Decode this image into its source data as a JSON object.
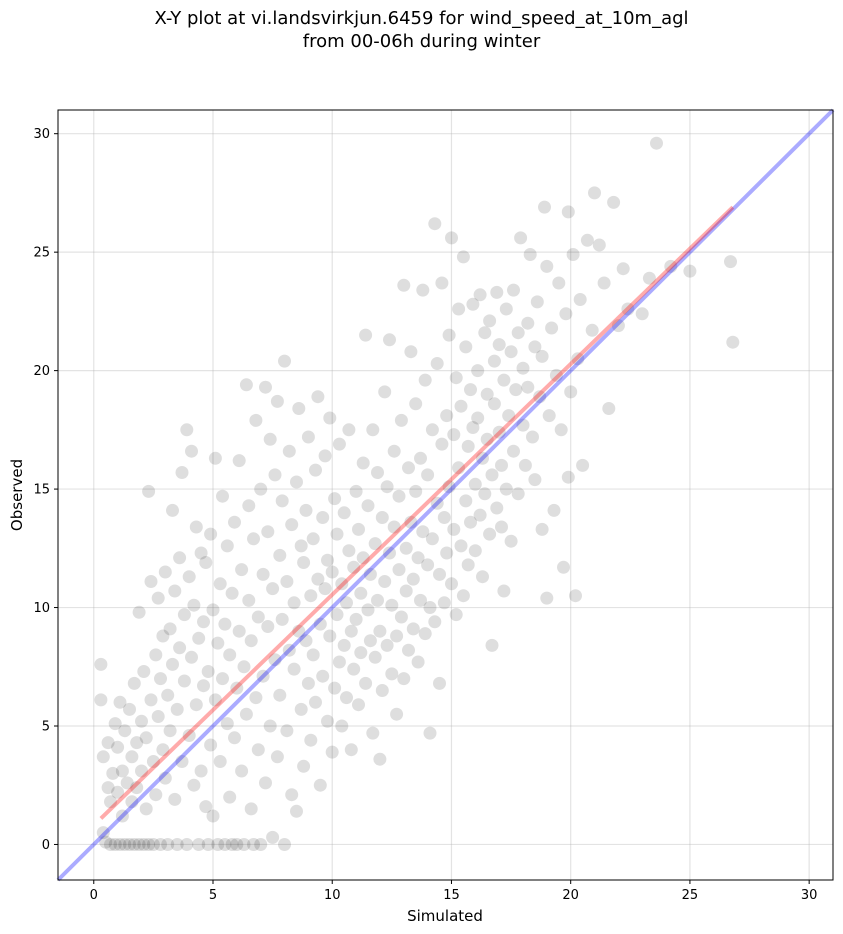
{
  "title_line1": "X-Y plot at vi.landsvirkjun.6459 for wind_speed_at_10m_agl",
  "title_line2": "from 00-06h during winter",
  "chart_data": {
    "type": "scatter",
    "xlabel": "Simulated",
    "ylabel": "Observed",
    "xlim": [
      -1.5,
      31
    ],
    "ylim": [
      -1.5,
      31
    ],
    "xticks": [
      0,
      5,
      10,
      15,
      20,
      25,
      30
    ],
    "yticks": [
      0,
      5,
      10,
      15,
      20,
      25,
      30
    ],
    "grid": true,
    "colors": {
      "points": "#000000",
      "fit_line": "#ff0000",
      "identity_line": "#0000ff"
    },
    "fit_line": {
      "x": [
        0.3,
        26.8
      ],
      "y": [
        1.1,
        26.9
      ]
    },
    "identity_line": {
      "x": [
        -1.5,
        31
      ],
      "y": [
        -1.5,
        31
      ]
    },
    "points": [
      [
        0.3,
        7.6
      ],
      [
        0.3,
        6.1
      ],
      [
        0.4,
        3.7
      ],
      [
        0.4,
        0.5
      ],
      [
        0.5,
        0.1
      ],
      [
        0.6,
        2.4
      ],
      [
        0.6,
        4.3
      ],
      [
        0.7,
        1.8
      ],
      [
        0.7,
        0.0
      ],
      [
        0.8,
        3.0
      ],
      [
        0.9,
        5.1
      ],
      [
        0.9,
        0.0
      ],
      [
        1.0,
        2.2
      ],
      [
        1.0,
        4.1
      ],
      [
        1.1,
        0.0
      ],
      [
        1.1,
        6.0
      ],
      [
        1.2,
        3.1
      ],
      [
        1.2,
        1.2
      ],
      [
        1.3,
        0.0
      ],
      [
        1.3,
        4.8
      ],
      [
        1.4,
        2.6
      ],
      [
        1.5,
        0.0
      ],
      [
        1.5,
        5.7
      ],
      [
        1.6,
        3.7
      ],
      [
        1.6,
        1.8
      ],
      [
        1.7,
        0.0
      ],
      [
        1.7,
        6.8
      ],
      [
        1.8,
        4.3
      ],
      [
        1.8,
        2.4
      ],
      [
        1.9,
        0.0
      ],
      [
        1.9,
        9.8
      ],
      [
        2.0,
        5.2
      ],
      [
        2.0,
        3.1
      ],
      [
        2.1,
        0.0
      ],
      [
        2.1,
        7.3
      ],
      [
        2.2,
        1.5
      ],
      [
        2.2,
        4.5
      ],
      [
        2.3,
        0.0
      ],
      [
        2.3,
        14.9
      ],
      [
        2.4,
        11.1
      ],
      [
        2.4,
        6.1
      ],
      [
        2.5,
        0.0
      ],
      [
        2.5,
        3.5
      ],
      [
        2.6,
        8.0
      ],
      [
        2.6,
        2.1
      ],
      [
        2.7,
        10.4
      ],
      [
        2.7,
        5.4
      ],
      [
        2.8,
        0.0
      ],
      [
        2.8,
        7.0
      ],
      [
        2.9,
        4.0
      ],
      [
        2.9,
        8.8
      ],
      [
        3.0,
        11.5
      ],
      [
        3.0,
        2.8
      ],
      [
        3.1,
        6.3
      ],
      [
        3.1,
        0.0
      ],
      [
        3.2,
        9.1
      ],
      [
        3.2,
        4.8
      ],
      [
        3.3,
        14.1
      ],
      [
        3.3,
        7.6
      ],
      [
        3.4,
        1.9
      ],
      [
        3.4,
        10.7
      ],
      [
        3.5,
        5.7
      ],
      [
        3.5,
        0.0
      ],
      [
        3.6,
        8.3
      ],
      [
        3.6,
        12.1
      ],
      [
        3.7,
        3.5
      ],
      [
        3.7,
        15.7
      ],
      [
        3.8,
        6.9
      ],
      [
        3.8,
        9.7
      ],
      [
        3.9,
        17.5
      ],
      [
        3.9,
        0.0
      ],
      [
        4.0,
        11.3
      ],
      [
        4.0,
        4.6
      ],
      [
        4.1,
        16.6
      ],
      [
        4.1,
        7.9
      ],
      [
        4.2,
        2.5
      ],
      [
        4.2,
        10.1
      ],
      [
        4.3,
        13.4
      ],
      [
        4.3,
        5.9
      ],
      [
        4.4,
        0.0
      ],
      [
        4.4,
        8.7
      ],
      [
        4.5,
        12.3
      ],
      [
        4.5,
        3.1
      ],
      [
        4.6,
        6.7
      ],
      [
        4.6,
        9.4
      ],
      [
        4.7,
        1.6
      ],
      [
        4.7,
        11.9
      ],
      [
        4.8,
        0.0
      ],
      [
        4.8,
        7.3
      ],
      [
        4.9,
        13.1
      ],
      [
        4.9,
        4.2
      ],
      [
        5.0,
        9.9
      ],
      [
        5.0,
        1.2
      ],
      [
        5.1,
        6.1
      ],
      [
        5.1,
        16.3
      ],
      [
        5.2,
        8.5
      ],
      [
        5.2,
        0.0
      ],
      [
        5.3,
        11.0
      ],
      [
        5.3,
        3.5
      ],
      [
        5.4,
        14.7
      ],
      [
        5.4,
        7.0
      ],
      [
        5.5,
        0.0
      ],
      [
        5.5,
        9.3
      ],
      [
        5.6,
        5.1
      ],
      [
        5.6,
        12.6
      ],
      [
        5.7,
        2.0
      ],
      [
        5.7,
        8.0
      ],
      [
        5.8,
        0.0
      ],
      [
        5.8,
        10.6
      ],
      [
        5.9,
        4.5
      ],
      [
        5.9,
        13.6
      ],
      [
        6.0,
        6.6
      ],
      [
        6.0,
        0.0
      ],
      [
        6.1,
        9.0
      ],
      [
        6.1,
        16.2
      ],
      [
        6.2,
        3.1
      ],
      [
        6.2,
        11.6
      ],
      [
        6.3,
        7.5
      ],
      [
        6.3,
        0.0
      ],
      [
        6.4,
        19.4
      ],
      [
        6.4,
        5.5
      ],
      [
        6.5,
        10.3
      ],
      [
        6.5,
        14.3
      ],
      [
        6.6,
        1.5
      ],
      [
        6.6,
        8.6
      ],
      [
        6.7,
        0.0
      ],
      [
        6.7,
        12.9
      ],
      [
        6.8,
        6.2
      ],
      [
        6.8,
        17.9
      ],
      [
        6.9,
        9.6
      ],
      [
        6.9,
        4.0
      ],
      [
        7.0,
        0.0
      ],
      [
        7.0,
        15.0
      ],
      [
        7.1,
        11.4
      ],
      [
        7.1,
        7.1
      ],
      [
        7.2,
        19.3
      ],
      [
        7.2,
        2.6
      ],
      [
        7.3,
        9.2
      ],
      [
        7.3,
        13.2
      ],
      [
        7.4,
        5.0
      ],
      [
        7.4,
        17.1
      ],
      [
        7.5,
        0.3
      ],
      [
        7.5,
        10.8
      ],
      [
        7.6,
        7.8
      ],
      [
        7.6,
        15.6
      ],
      [
        7.7,
        3.7
      ],
      [
        7.7,
        18.7
      ],
      [
        7.8,
        12.2
      ],
      [
        7.8,
        6.3
      ],
      [
        7.9,
        9.5
      ],
      [
        7.9,
        14.5
      ],
      [
        8.0,
        0.0
      ],
      [
        8.0,
        20.4
      ],
      [
        8.1,
        11.1
      ],
      [
        8.1,
        4.8
      ],
      [
        8.2,
        8.2
      ],
      [
        8.2,
        16.6
      ],
      [
        8.3,
        13.5
      ],
      [
        8.3,
        2.1
      ],
      [
        8.4,
        7.4
      ],
      [
        8.4,
        10.2
      ],
      [
        8.5,
        1.4
      ],
      [
        8.5,
        15.3
      ],
      [
        8.6,
        9.0
      ],
      [
        8.6,
        18.4
      ],
      [
        8.7,
        5.7
      ],
      [
        8.7,
        12.6
      ],
      [
        8.8,
        11.9
      ],
      [
        8.8,
        3.3
      ],
      [
        8.9,
        8.6
      ],
      [
        8.9,
        14.1
      ],
      [
        9.0,
        6.8
      ],
      [
        9.0,
        17.2
      ],
      [
        9.1,
        10.5
      ],
      [
        9.1,
        4.4
      ],
      [
        9.2,
        12.9
      ],
      [
        9.2,
        8.0
      ],
      [
        9.3,
        15.8
      ],
      [
        9.3,
        6.0
      ],
      [
        9.4,
        11.2
      ],
      [
        9.4,
        18.9
      ],
      [
        9.5,
        9.3
      ],
      [
        9.5,
        2.5
      ],
      [
        9.6,
        13.8
      ],
      [
        9.6,
        7.1
      ],
      [
        9.7,
        10.8
      ],
      [
        9.7,
        16.4
      ],
      [
        9.8,
        5.2
      ],
      [
        9.8,
        12.0
      ],
      [
        9.9,
        8.8
      ],
      [
        9.9,
        18.0
      ],
      [
        10.0,
        11.5
      ],
      [
        10.0,
        3.9
      ],
      [
        10.1,
        14.6
      ],
      [
        10.1,
        6.6
      ],
      [
        10.2,
        9.7
      ],
      [
        10.2,
        13.1
      ],
      [
        10.3,
        7.7
      ],
      [
        10.3,
        16.9
      ],
      [
        10.4,
        11.0
      ],
      [
        10.4,
        5.0
      ],
      [
        10.5,
        8.4
      ],
      [
        10.5,
        14.0
      ],
      [
        10.6,
        10.2
      ],
      [
        10.6,
        6.2
      ],
      [
        10.7,
        12.4
      ],
      [
        10.7,
        17.5
      ],
      [
        10.8,
        9.0
      ],
      [
        10.8,
        4.0
      ],
      [
        10.9,
        11.7
      ],
      [
        10.9,
        7.4
      ],
      [
        11.0,
        14.9
      ],
      [
        11.0,
        9.5
      ],
      [
        11.1,
        13.3
      ],
      [
        11.1,
        5.9
      ],
      [
        11.2,
        10.6
      ],
      [
        11.2,
        8.1
      ],
      [
        11.3,
        16.1
      ],
      [
        11.3,
        12.1
      ],
      [
        11.4,
        6.8
      ],
      [
        11.4,
        21.5
      ],
      [
        11.5,
        9.9
      ],
      [
        11.5,
        14.3
      ],
      [
        11.6,
        8.6
      ],
      [
        11.6,
        11.4
      ],
      [
        11.7,
        4.7
      ],
      [
        11.7,
        17.5
      ],
      [
        11.8,
        12.7
      ],
      [
        11.8,
        7.9
      ],
      [
        11.9,
        15.7
      ],
      [
        11.9,
        10.3
      ],
      [
        12.0,
        9.0
      ],
      [
        12.0,
        3.6
      ],
      [
        12.1,
        13.8
      ],
      [
        12.1,
        6.5
      ],
      [
        12.2,
        11.1
      ],
      [
        12.2,
        19.1
      ],
      [
        12.3,
        8.4
      ],
      [
        12.3,
        15.1
      ],
      [
        12.4,
        12.3
      ],
      [
        12.4,
        21.3
      ],
      [
        12.5,
        7.2
      ],
      [
        12.5,
        10.1
      ],
      [
        12.6,
        16.6
      ],
      [
        12.6,
        13.4
      ],
      [
        12.7,
        8.8
      ],
      [
        12.7,
        5.5
      ],
      [
        12.8,
        11.6
      ],
      [
        12.8,
        14.7
      ],
      [
        12.9,
        9.6
      ],
      [
        12.9,
        17.9
      ],
      [
        13.0,
        7.0
      ],
      [
        13.0,
        23.6
      ],
      [
        13.1,
        12.5
      ],
      [
        13.1,
        10.7
      ],
      [
        13.2,
        15.9
      ],
      [
        13.2,
        8.2
      ],
      [
        13.3,
        13.6
      ],
      [
        13.3,
        20.8
      ],
      [
        13.4,
        11.2
      ],
      [
        13.4,
        9.1
      ],
      [
        13.5,
        18.6
      ],
      [
        13.5,
        14.9
      ],
      [
        13.6,
        12.1
      ],
      [
        13.6,
        7.7
      ],
      [
        13.7,
        16.3
      ],
      [
        13.7,
        10.3
      ],
      [
        13.8,
        23.4
      ],
      [
        13.8,
        13.2
      ],
      [
        13.9,
        8.9
      ],
      [
        13.9,
        19.6
      ],
      [
        14.0,
        11.8
      ],
      [
        14.0,
        15.6
      ],
      [
        14.1,
        10.0
      ],
      [
        14.1,
        4.7
      ],
      [
        14.2,
        17.5
      ],
      [
        14.2,
        12.9
      ],
      [
        14.3,
        26.2
      ],
      [
        14.3,
        9.4
      ],
      [
        14.4,
        14.4
      ],
      [
        14.4,
        20.3
      ],
      [
        14.5,
        11.4
      ],
      [
        14.5,
        6.8
      ],
      [
        14.6,
        16.9
      ],
      [
        14.6,
        23.7
      ],
      [
        14.7,
        13.8
      ],
      [
        14.7,
        10.2
      ],
      [
        14.8,
        18.1
      ],
      [
        14.8,
        12.3
      ],
      [
        14.9,
        21.5
      ],
      [
        14.9,
        15.1
      ],
      [
        15.0,
        25.6
      ],
      [
        15.0,
        11.0
      ],
      [
        15.1,
        17.3
      ],
      [
        15.1,
        13.3
      ],
      [
        15.2,
        19.7
      ],
      [
        15.2,
        9.7
      ],
      [
        15.3,
        22.6
      ],
      [
        15.3,
        15.9
      ],
      [
        15.4,
        12.6
      ],
      [
        15.4,
        18.5
      ],
      [
        15.5,
        10.5
      ],
      [
        15.5,
        24.8
      ],
      [
        15.6,
        14.5
      ],
      [
        15.6,
        21.0
      ],
      [
        15.7,
        16.8
      ],
      [
        15.7,
        11.8
      ],
      [
        15.8,
        19.2
      ],
      [
        15.8,
        13.6
      ],
      [
        15.9,
        22.8
      ],
      [
        15.9,
        17.6
      ],
      [
        16.0,
        15.2
      ],
      [
        16.0,
        12.4
      ],
      [
        16.1,
        20.0
      ],
      [
        16.1,
        18.0
      ],
      [
        16.2,
        13.9
      ],
      [
        16.2,
        23.2
      ],
      [
        16.3,
        16.3
      ],
      [
        16.3,
        11.3
      ],
      [
        16.4,
        21.6
      ],
      [
        16.4,
        14.8
      ],
      [
        16.5,
        19.0
      ],
      [
        16.5,
        17.1
      ],
      [
        16.6,
        13.1
      ],
      [
        16.6,
        22.1
      ],
      [
        16.7,
        8.4
      ],
      [
        16.7,
        15.6
      ],
      [
        16.8,
        20.4
      ],
      [
        16.8,
        18.6
      ],
      [
        16.9,
        23.3
      ],
      [
        16.9,
        14.2
      ],
      [
        17.0,
        17.4
      ],
      [
        17.0,
        21.1
      ],
      [
        17.1,
        16.0
      ],
      [
        17.1,
        13.4
      ],
      [
        17.2,
        19.6
      ],
      [
        17.2,
        10.7
      ],
      [
        17.3,
        22.6
      ],
      [
        17.3,
        15.0
      ],
      [
        17.4,
        18.1
      ],
      [
        17.5,
        20.8
      ],
      [
        17.5,
        12.8
      ],
      [
        17.6,
        23.4
      ],
      [
        17.6,
        16.6
      ],
      [
        17.7,
        19.2
      ],
      [
        17.8,
        14.8
      ],
      [
        17.8,
        21.6
      ],
      [
        17.9,
        25.6
      ],
      [
        18.0,
        17.7
      ],
      [
        18.0,
        20.1
      ],
      [
        18.1,
        16.0
      ],
      [
        18.2,
        22.0
      ],
      [
        18.2,
        19.3
      ],
      [
        18.3,
        24.9
      ],
      [
        18.4,
        17.2
      ],
      [
        18.5,
        21.0
      ],
      [
        18.5,
        15.4
      ],
      [
        18.6,
        22.9
      ],
      [
        18.7,
        18.9
      ],
      [
        18.8,
        13.3
      ],
      [
        18.8,
        20.6
      ],
      [
        18.9,
        26.9
      ],
      [
        19.0,
        24.4
      ],
      [
        19.0,
        10.4
      ],
      [
        19.1,
        18.1
      ],
      [
        19.2,
        21.8
      ],
      [
        19.3,
        14.1
      ],
      [
        19.4,
        19.8
      ],
      [
        19.5,
        23.7
      ],
      [
        19.6,
        17.5
      ],
      [
        19.7,
        11.7
      ],
      [
        19.8,
        22.4
      ],
      [
        19.9,
        26.7
      ],
      [
        19.9,
        15.5
      ],
      [
        20.0,
        19.1
      ],
      [
        20.1,
        24.9
      ],
      [
        20.2,
        10.5
      ],
      [
        20.3,
        20.5
      ],
      [
        20.4,
        23.0
      ],
      [
        20.5,
        16.0
      ],
      [
        20.7,
        25.5
      ],
      [
        20.9,
        21.7
      ],
      [
        21.0,
        27.5
      ],
      [
        21.2,
        25.3
      ],
      [
        21.4,
        23.7
      ],
      [
        21.6,
        18.4
      ],
      [
        21.8,
        27.1
      ],
      [
        22.0,
        21.9
      ],
      [
        22.2,
        24.3
      ],
      [
        22.4,
        22.6
      ],
      [
        23.0,
        22.4
      ],
      [
        23.3,
        23.9
      ],
      [
        23.6,
        29.6
      ],
      [
        24.2,
        24.4
      ],
      [
        25.0,
        24.2
      ],
      [
        26.7,
        24.6
      ],
      [
        26.8,
        21.2
      ]
    ]
  }
}
